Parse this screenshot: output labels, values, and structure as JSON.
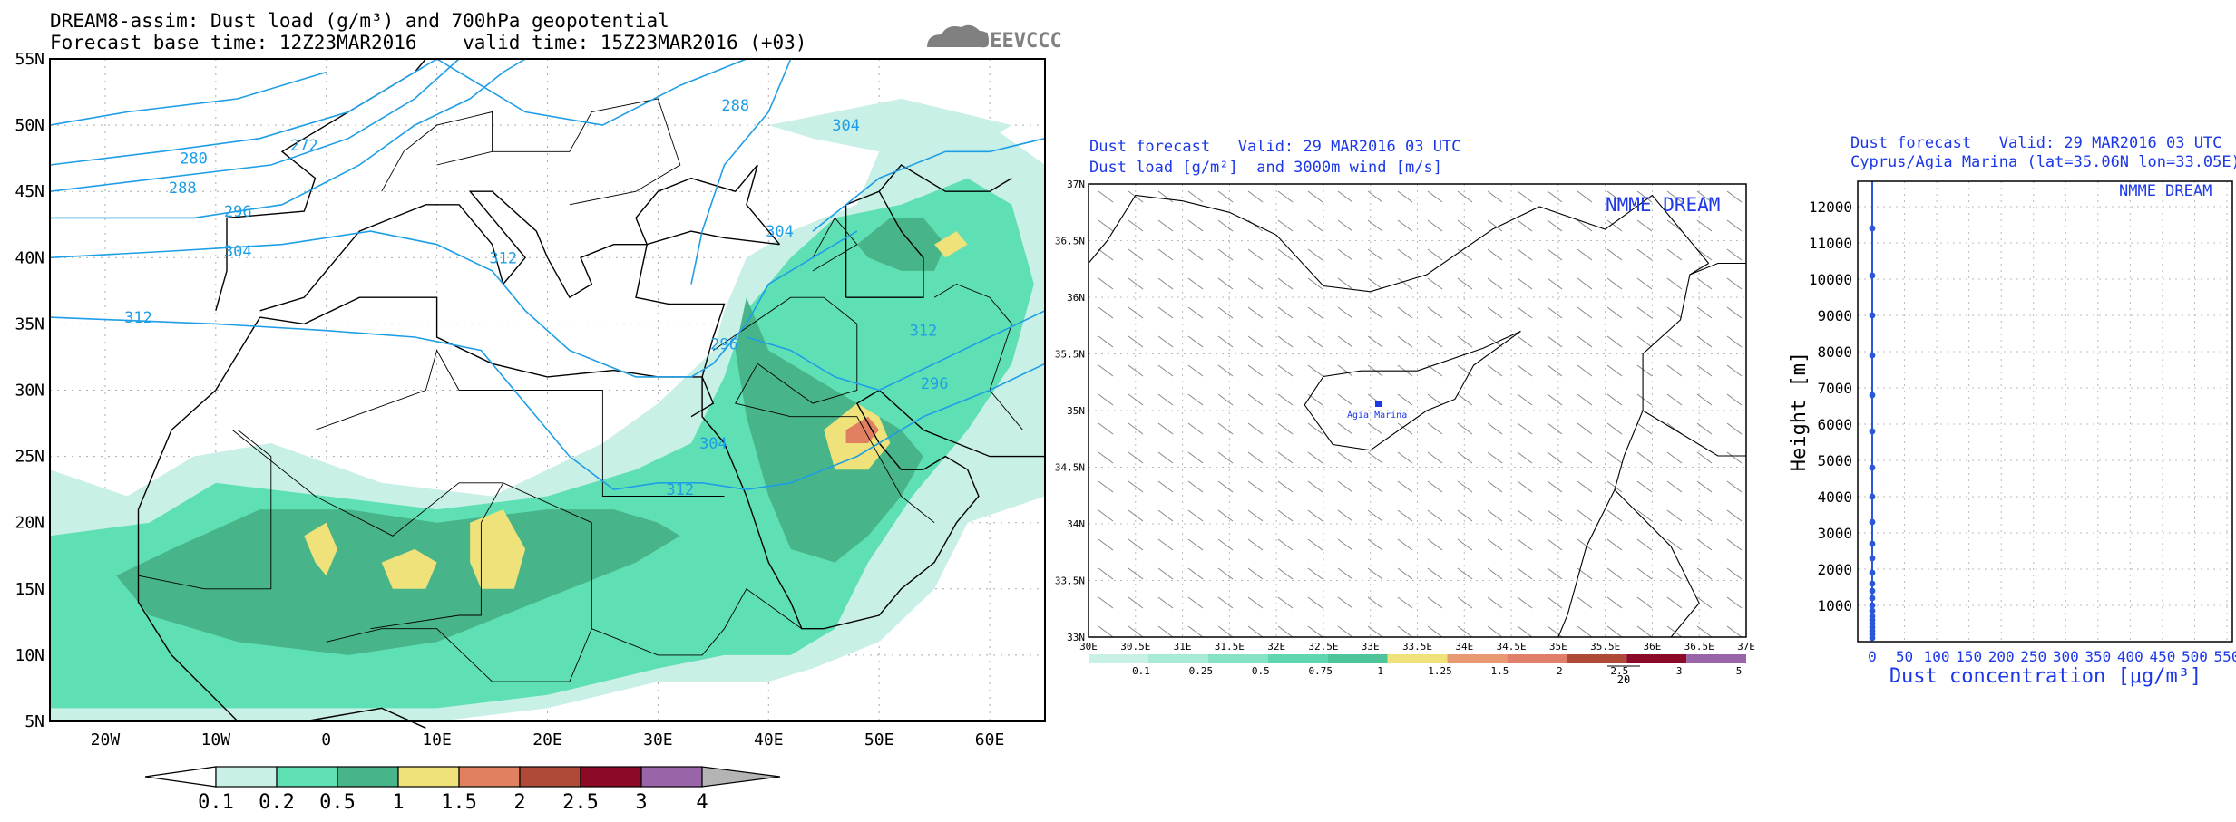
{
  "colors": {
    "dust_0_1": "#c8f0e6",
    "dust_0_2": "#5fe0b4",
    "dust_0_5": "#48b48a",
    "dust_1": "#f0e27a",
    "dust_1_5": "#e08060",
    "dust_2": "#b04a38",
    "dust_2_5": "#8c0a28",
    "dust_3": "#9a64a8",
    "dust_4": "#b4b4b4",
    "contour": "#1e9ee6",
    "blue_text": "#1c38e8",
    "profile_line": "#2a58d8"
  },
  "left_panel": {
    "title_line1": "DREAM8-assim: Dust load (g/m³) and 700hPa geopotential",
    "title_line2": "Forecast base time: 12Z23MAR2016    valid time: 15Z23MAR2016 (+03)",
    "logo_text": "SEEVCCC",
    "lat_labels": [
      "55N",
      "50N",
      "45N",
      "40N",
      "35N",
      "30N",
      "25N",
      "20N",
      "15N",
      "10N",
      "5N"
    ],
    "lon_labels": [
      "20W",
      "10W",
      "0",
      "10E",
      "20E",
      "30E",
      "40E",
      "50E",
      "60E"
    ],
    "contour_labels": [
      "272",
      "280",
      "288",
      "296",
      "304",
      "312",
      "288",
      "296",
      "304",
      "312",
      "304",
      "312",
      "296",
      "304",
      "312"
    ],
    "legend_labels": [
      "0.1",
      "0.2",
      "0.5",
      "1",
      "1.5",
      "2",
      "2.5",
      "3",
      "4"
    ]
  },
  "middle_panel": {
    "title_line1": "Dust forecast   Valid: 29 MAR2016 03 UTC",
    "title_line2": "Dust load [g/m²]  and 3000m wind [m/s]",
    "watermark": "NMME DREAM",
    "station_label": "Agia Marina",
    "lat_labels": [
      "37N",
      "36.5N",
      "36N",
      "35.5N",
      "35N",
      "34.5N",
      "34N",
      "33.5N",
      "33N"
    ],
    "lon_labels": [
      "30E",
      "30.5E",
      "31E",
      "31.5E",
      "32E",
      "32.5E",
      "33E",
      "33.5E",
      "34E",
      "34.5E",
      "35E",
      "35.5E",
      "36E",
      "36.5E",
      "37E"
    ],
    "legend_labels": [
      "0.1",
      "0.25",
      "0.5",
      "0.75",
      "1",
      "1.25",
      "1.5",
      "2",
      "2.5",
      "3",
      "5"
    ],
    "wind_ref_label": "20"
  },
  "right_panel": {
    "title_line1": "Dust forecast   Valid: 29 MAR2016 03 UTC",
    "title_line2": "Cyprus/Agia Marina (lat=35.06N lon=33.05E)",
    "watermark": "NMME DREAM"
  },
  "chart_data": [
    {
      "type": "heatmap",
      "title": "DREAM8-assim: Dust load (g/m³) and 700hPa geopotential",
      "subtitle": "Forecast base time: 12Z23MAR2016    valid time: 15Z23MAR2016 (+03)",
      "xlim": [
        -25,
        65
      ],
      "ylim": [
        5,
        55
      ],
      "x_ticks": [
        "20W",
        "10W",
        "0",
        "10E",
        "20E",
        "30E",
        "40E",
        "50E",
        "60E"
      ],
      "y_ticks": [
        "55N",
        "50N",
        "45N",
        "40N",
        "35N",
        "30N",
        "25N",
        "20N",
        "15N",
        "10N",
        "5N"
      ],
      "color_levels": [
        0.1,
        0.2,
        0.5,
        1,
        1.5,
        2,
        2.5,
        3,
        4
      ],
      "contour_levels": [
        272,
        280,
        288,
        296,
        304,
        312
      ]
    },
    {
      "type": "heatmap",
      "title": "Dust forecast   Valid: 29 MAR2016 03 UTC",
      "subtitle": "Dust load [g/m²]  and 3000m wind [m/s]",
      "xlim": [
        30,
        37
      ],
      "ylim": [
        33,
        37
      ],
      "color_levels": [
        0.1,
        0.25,
        0.5,
        0.75,
        1,
        1.25,
        1.5,
        2,
        2.5,
        3,
        5
      ],
      "wind_reference": 20
    },
    {
      "type": "line",
      "title": "Dust forecast   Valid: 29 MAR2016 03 UTC",
      "subtitle": "Cyprus/Agia Marina (lat=35.06N lon=33.05E)",
      "xlabel": "Dust concentration [μg/m³]",
      "ylabel": "Height [m]",
      "xlim": [
        0,
        550
      ],
      "ylim": [
        0,
        12700
      ],
      "x_ticks": [
        0,
        50,
        100,
        150,
        200,
        250,
        300,
        350,
        400,
        450,
        500,
        550
      ],
      "y_ticks": [
        1000,
        2000,
        3000,
        4000,
        5000,
        6000,
        7000,
        8000,
        9000,
        10000,
        11000,
        12000
      ],
      "grid": true,
      "series": [
        {
          "x": [
            0,
            0,
            0,
            0,
            0,
            0,
            0,
            0,
            0,
            0,
            0,
            0,
            0,
            0,
            0,
            0,
            0,
            0,
            0,
            0,
            0,
            0,
            0,
            0
          ],
          "y": [
            100,
            200,
            300,
            400,
            500,
            600,
            700,
            850,
            1000,
            1200,
            1400,
            1600,
            1900,
            2300,
            2700,
            3300,
            4000,
            4800,
            5800,
            6800,
            7900,
            9000,
            10100,
            11400
          ]
        }
      ]
    }
  ]
}
